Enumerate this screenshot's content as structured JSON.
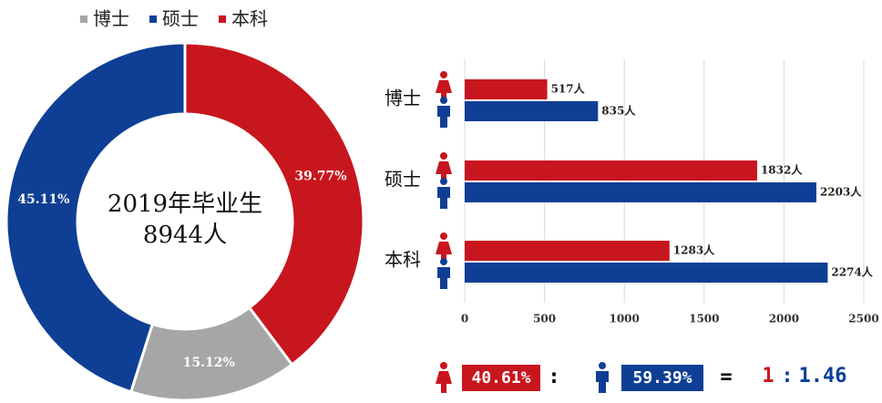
{
  "chart_data": [
    {
      "type": "donut",
      "categories": [
        "博士",
        "硕士",
        "本科"
      ],
      "values": [
        15.12,
        45.11,
        39.77
      ],
      "value_labels": [
        "15.12%",
        "45.11%",
        "39.77%"
      ],
      "colors": [
        "#a6a6a6",
        "#0e3f95",
        "#c8161e"
      ],
      "center_text": [
        "2019年毕业生",
        "8944人"
      ]
    },
    {
      "type": "hbar",
      "categories": [
        "博士",
        "硕士",
        "本科"
      ],
      "series": [
        {
          "color": "#c8161e",
          "values": [
            517,
            1832,
            1283
          ],
          "value_labels": [
            "517人",
            "1832人",
            "1283人"
          ]
        },
        {
          "color": "#0e3f95",
          "values": [
            835,
            2203,
            2274
          ],
          "value_labels": [
            "835人",
            "2203人",
            "2274人"
          ]
        }
      ],
      "xlim": [
        0,
        2500
      ],
      "xticks": [
        0,
        500,
        1000,
        1500,
        2000,
        2500
      ],
      "grid": true
    }
  ],
  "summary": {
    "female": "40.61%",
    "sep": ":",
    "male": "59.39%",
    "eq": "=",
    "ratio_left": "1",
    "ratio_sep": ":",
    "ratio_right": "1.46"
  }
}
